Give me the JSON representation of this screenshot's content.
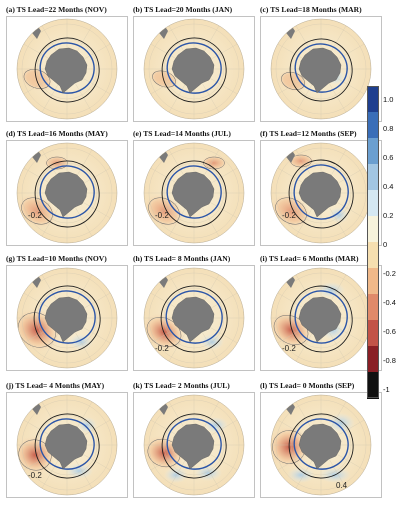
{
  "panels": [
    {
      "id": "a",
      "title": "(a) TS Lead=22 Months (NOV)",
      "labels": []
    },
    {
      "id": "b",
      "title": "(b) TS Lead=20 Months (JAN)",
      "labels": []
    },
    {
      "id": "c",
      "title": "(c) TS Lead=18 Months (MAR)",
      "labels": []
    },
    {
      "id": "d",
      "title": "(d) TS Lead=16 Months (MAY)",
      "labels": [
        "-0.2"
      ]
    },
    {
      "id": "e",
      "title": "(e) TS Lead=14 Months (JUL)",
      "labels": [
        "-0.2"
      ]
    },
    {
      "id": "f",
      "title": "(f) TS Lead=12 Months (SEP)",
      "labels": [
        "-0.2"
      ]
    },
    {
      "id": "g",
      "title": "(g) TS Lead=10 Months (NOV)",
      "labels": []
    },
    {
      "id": "h",
      "title": "(h) TS Lead= 8 Months (JAN)",
      "labels": [
        "-0.2"
      ]
    },
    {
      "id": "i",
      "title": "(i) TS Lead= 6 Months (MAR)",
      "labels": [
        "-0.2"
      ]
    },
    {
      "id": "j",
      "title": "(j) TS Lead= 4 Months (MAY)",
      "labels": [
        "-0.2"
      ]
    },
    {
      "id": "k",
      "title": "(k) TS Lead= 2 Months (JUL)",
      "labels": []
    },
    {
      "id": "l",
      "title": "(l) TS Lead= 0 Months (SEP)",
      "labels": [
        "0.4"
      ]
    }
  ],
  "colorbar": {
    "ticks": [
      "1.0",
      "0.8",
      "0.6",
      "0.4",
      "0.2",
      "0",
      "-0.2",
      "-0.4",
      "-0.6",
      "-0.8",
      "-1"
    ],
    "colors": [
      "#1f3f8f",
      "#3a6eb8",
      "#6b9fd0",
      "#a2c6e3",
      "#d5e8f2",
      "#f7f3dc",
      "#f6dfb0",
      "#f0b98a",
      "#e08a6a",
      "#c25348",
      "#8a1f25",
      "#111111"
    ]
  },
  "colors": {
    "land": "#7a7a7a",
    "ice_edge": "#2b55a8",
    "front": "#1e1e1e"
  }
}
